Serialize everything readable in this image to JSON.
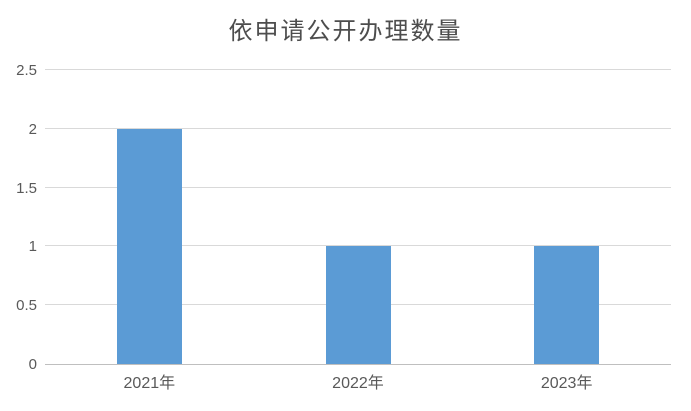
{
  "chart_data": {
    "type": "bar",
    "title": "依申请公开办理数量",
    "categories": [
      "2021年",
      "2022年",
      "2023年"
    ],
    "values": [
      2,
      1,
      1
    ],
    "xlabel": "",
    "ylabel": "",
    "ylim": [
      0,
      2.5
    ],
    "ytick_step": 0.5,
    "yticks": [
      "0",
      "0.5",
      "1",
      "1.5",
      "2",
      "2.5"
    ],
    "grid": true,
    "legend": false,
    "series_count": 1
  },
  "colors": {
    "bar": "#5b9bd5",
    "title_text": "#4d4d4d",
    "axis_text": "#595959",
    "gridline": "#d9d9d9",
    "axis_line": "#bfbfbf",
    "background": "#ffffff"
  }
}
